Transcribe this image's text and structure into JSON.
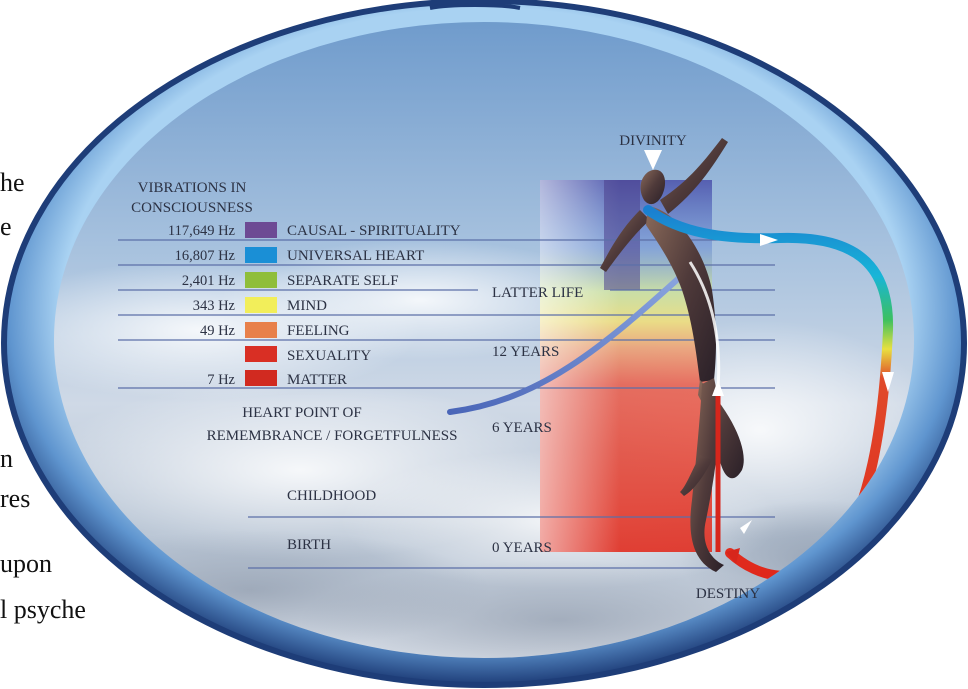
{
  "body_fragments": [
    "he",
    "e",
    "n",
    "res",
    "upon",
    "l psyche"
  ],
  "heading": [
    "VIBRATIONS IN",
    "CONSCIOUSNESS"
  ],
  "levels": [
    {
      "hz": "117,649 Hz",
      "label": "CAUSAL - SPIRITUALITY",
      "color": "#6d4a94"
    },
    {
      "hz": "16,807 Hz",
      "label": "UNIVERSAL HEART",
      "color": "#1a8fd6"
    },
    {
      "hz": "2,401 Hz",
      "label": "SEPARATE SELF",
      "color": "#8fbe3a"
    },
    {
      "hz": "343 Hz",
      "label": "MIND",
      "color": "#f2ee5a"
    },
    {
      "hz": "49 Hz",
      "label": "FEELING",
      "color": "#e8804a"
    },
    {
      "hz": "",
      "label": "SEXUALITY",
      "color": "#d92f24"
    },
    {
      "hz": "7 Hz",
      "label": "MATTER",
      "color": "#d12a20"
    }
  ],
  "heart_point": [
    "HEART POINT OF",
    "REMEMBRANCE / FORGETFULNESS"
  ],
  "ages": {
    "latter_life": "LATTER LIFE",
    "twelve": "12 YEARS",
    "six": "6 YEARS",
    "zero": "0 YEARS"
  },
  "stages": {
    "childhood": "CHILDHOOD",
    "birth": "BIRTH"
  },
  "divinity": "DIVINITY",
  "destiny": "DESTINY",
  "colors": {
    "frame_outer": "#1f3f7a",
    "frame_light": "#8ec1ea",
    "sky": "#9fbcdb",
    "line": "#5c6fa8",
    "red_column": "#e0362a",
    "purple_column": "#4c3f8c"
  }
}
